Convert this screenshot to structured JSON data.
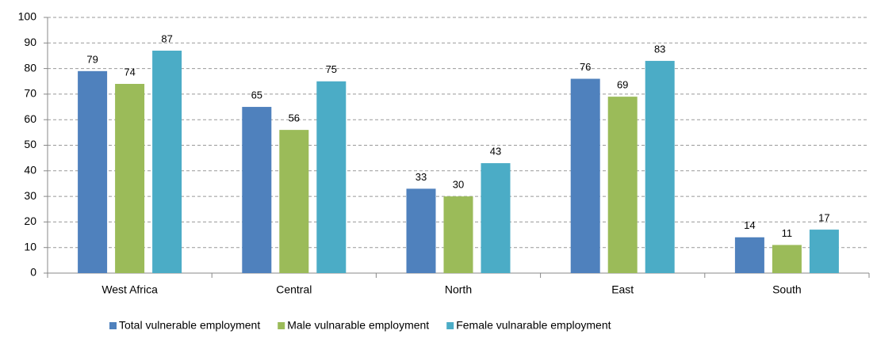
{
  "chart_data": {
    "type": "bar",
    "categories": [
      "West Africa",
      "Central",
      "North",
      "East",
      "South"
    ],
    "series": [
      {
        "name": "Total vulnerable employment",
        "color": "#4f81bd",
        "values": [
          79,
          65,
          33,
          76,
          14
        ]
      },
      {
        "name": "Male vulnarable employment",
        "color": "#9bbb59",
        "values": [
          74,
          56,
          30,
          69,
          11
        ]
      },
      {
        "name": "Female vulnarable employment",
        "color": "#4bacc6",
        "values": [
          87,
          75,
          43,
          83,
          17
        ]
      }
    ],
    "ylim": [
      0,
      100
    ],
    "yticks": [
      0,
      10,
      20,
      30,
      40,
      50,
      60,
      70,
      80,
      90,
      100
    ],
    "grid": true,
    "legend": "bottom"
  }
}
